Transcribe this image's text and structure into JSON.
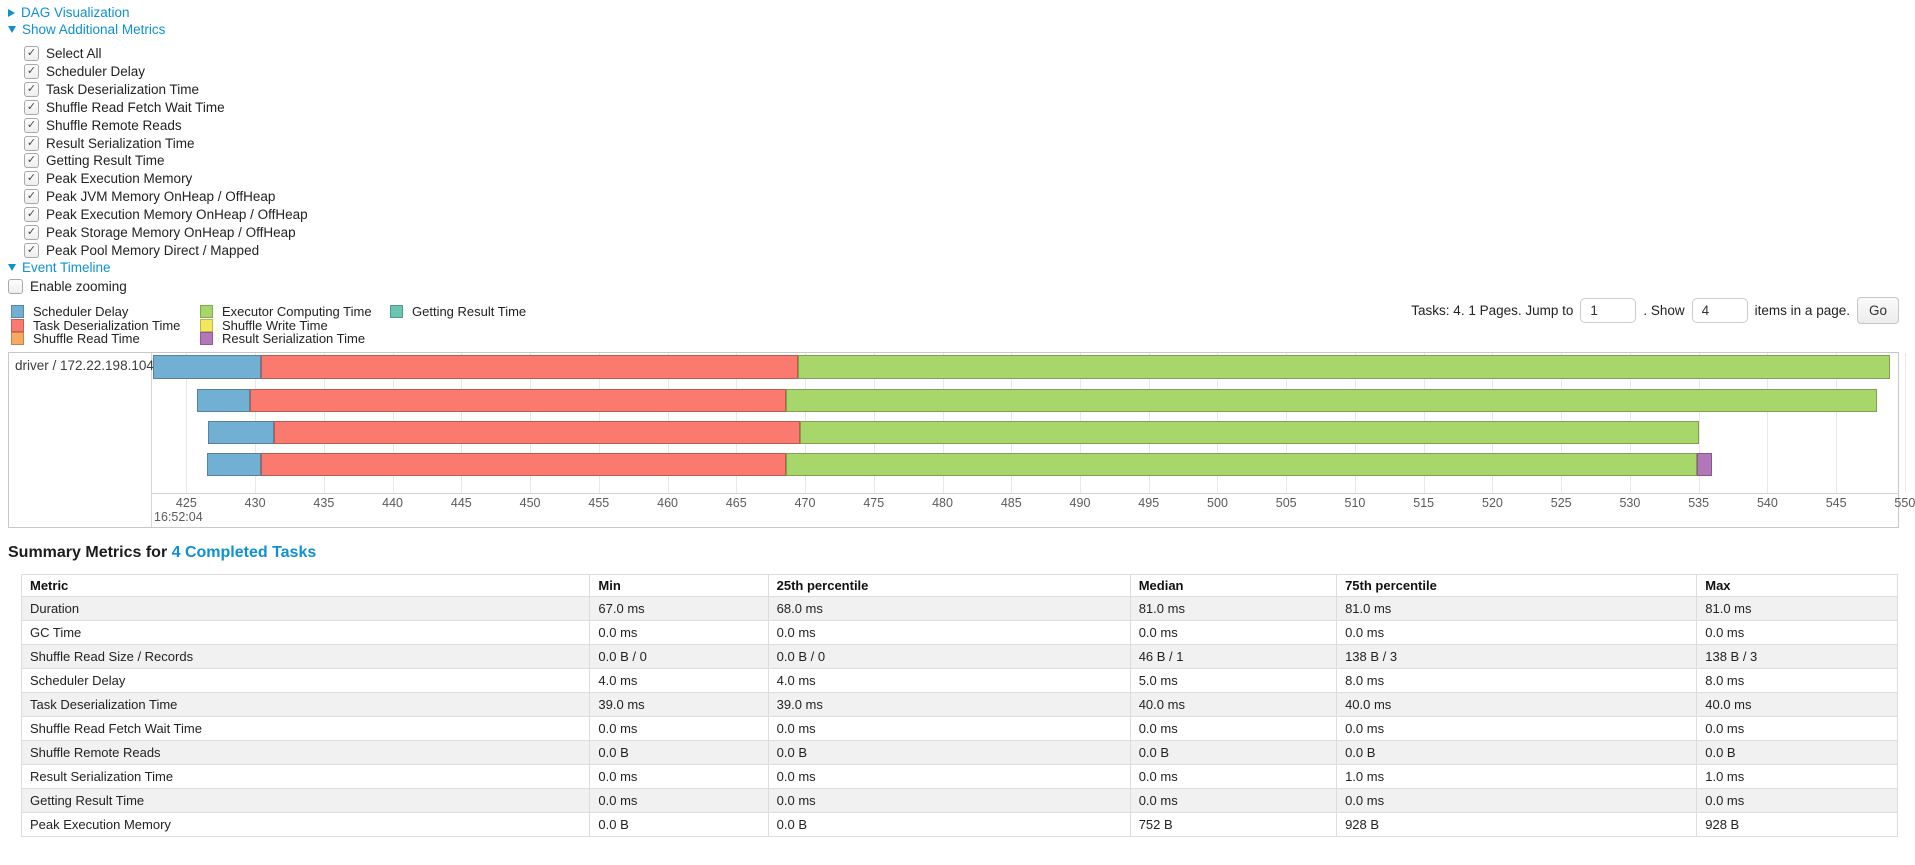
{
  "colors": {
    "scheduler_delay": "#71AFD3",
    "task_deserialization": "#FB7A6F",
    "shuffle_read": "#F9A85F",
    "executor_computing": "#A9D66A",
    "shuffle_write": "#F3E75F",
    "result_serialization": "#B476BB",
    "getting_result": "#6CC5B3",
    "link": "#0E90D2"
  },
  "links": {
    "dag": "DAG Visualization",
    "additional_metrics": "Show Additional Metrics",
    "event_timeline": "Event Timeline"
  },
  "metrics_panel": {
    "items": [
      {
        "label": "Select All",
        "checked": true
      },
      {
        "label": "Scheduler Delay",
        "checked": true
      },
      {
        "label": "Task Deserialization Time",
        "checked": true
      },
      {
        "label": "Shuffle Read Fetch Wait Time",
        "checked": true
      },
      {
        "label": "Shuffle Remote Reads",
        "checked": true
      },
      {
        "label": "Result Serialization Time",
        "checked": true
      },
      {
        "label": "Getting Result Time",
        "checked": true
      },
      {
        "label": "Peak Execution Memory",
        "checked": true
      },
      {
        "label": "Peak JVM Memory OnHeap / OffHeap",
        "checked": true
      },
      {
        "label": "Peak Execution Memory OnHeap / OffHeap",
        "checked": true
      },
      {
        "label": "Peak Storage Memory OnHeap / OffHeap",
        "checked": true
      },
      {
        "label": "Peak Pool Memory Direct / Mapped",
        "checked": true
      }
    ]
  },
  "enable_zooming": {
    "label": "Enable zooming",
    "checked": false
  },
  "legend": {
    "columns": [
      [
        {
          "label": "Scheduler Delay",
          "kind": "scheduler_delay"
        },
        {
          "label": "Task Deserialization Time",
          "kind": "task_deserialization"
        },
        {
          "label": "Shuffle Read Time",
          "kind": "shuffle_read"
        }
      ],
      [
        {
          "label": "Executor Computing Time",
          "kind": "executor_computing"
        },
        {
          "label": "Shuffle Write Time",
          "kind": "shuffle_write"
        },
        {
          "label": "Result Serialization Time",
          "kind": "result_serialization"
        }
      ],
      [
        {
          "label": "Getting Result Time",
          "kind": "getting_result"
        }
      ]
    ]
  },
  "pagination": {
    "prefix": "Tasks: 4. 1 Pages. Jump to",
    "jump_value": "1",
    "mid": ". Show",
    "show_value": "4",
    "suffix": "items in a page.",
    "go_label": "Go"
  },
  "chart_data": {
    "type": "timeline",
    "group_label": "driver / 172.22.198.104",
    "x_axis": {
      "t_min": 422.5,
      "t_max": 549.5,
      "tick_start": 425,
      "tick_end": 550,
      "tick_step": 5,
      "unit": "ms",
      "second_label": "16:52:04"
    },
    "tasks": [
      {
        "segments": [
          {
            "kind": "scheduler_delay",
            "start": 422.6,
            "end": 430.4
          },
          {
            "kind": "task_deserialization",
            "start": 430.4,
            "end": 469.5
          },
          {
            "kind": "executor_computing",
            "start": 469.5,
            "end": 548.9
          }
        ]
      },
      {
        "segments": [
          {
            "kind": "scheduler_delay",
            "start": 425.8,
            "end": 429.6
          },
          {
            "kind": "task_deserialization",
            "start": 429.6,
            "end": 468.6
          },
          {
            "kind": "executor_computing",
            "start": 468.6,
            "end": 548.0
          }
        ]
      },
      {
        "segments": [
          {
            "kind": "scheduler_delay",
            "start": 426.6,
            "end": 431.4
          },
          {
            "kind": "task_deserialization",
            "start": 431.4,
            "end": 469.6
          },
          {
            "kind": "executor_computing",
            "start": 469.6,
            "end": 535.0
          }
        ]
      },
      {
        "segments": [
          {
            "kind": "scheduler_delay",
            "start": 426.5,
            "end": 430.4
          },
          {
            "kind": "task_deserialization",
            "start": 430.4,
            "end": 468.6
          },
          {
            "kind": "executor_computing",
            "start": 468.6,
            "end": 534.9
          },
          {
            "kind": "result_serialization",
            "start": 534.9,
            "end": 536.0
          }
        ]
      }
    ]
  },
  "summary": {
    "title_prefix": "Summary Metrics for ",
    "title_link": "4 Completed Tasks",
    "columns": [
      "Metric",
      "Min",
      "25th percentile",
      "Median",
      "75th percentile",
      "Max"
    ],
    "col_widths_pct": [
      30.3,
      9.5,
      19.3,
      11.0,
      19.2,
      10.7
    ],
    "rows": [
      {
        "metric": "Duration",
        "values": [
          "67.0 ms",
          "68.0 ms",
          "81.0 ms",
          "81.0 ms",
          "81.0 ms"
        ]
      },
      {
        "metric": "GC Time",
        "values": [
          "0.0 ms",
          "0.0 ms",
          "0.0 ms",
          "0.0 ms",
          "0.0 ms"
        ]
      },
      {
        "metric": "Shuffle Read Size / Records",
        "values": [
          "0.0 B / 0",
          "0.0 B / 0",
          "46 B / 1",
          "138 B / 3",
          "138 B / 3"
        ]
      },
      {
        "metric": "Scheduler Delay",
        "values": [
          "4.0 ms",
          "4.0 ms",
          "5.0 ms",
          "8.0 ms",
          "8.0 ms"
        ]
      },
      {
        "metric": "Task Deserialization Time",
        "values": [
          "39.0 ms",
          "39.0 ms",
          "40.0 ms",
          "40.0 ms",
          "40.0 ms"
        ]
      },
      {
        "metric": "Shuffle Read Fetch Wait Time",
        "values": [
          "0.0 ms",
          "0.0 ms",
          "0.0 ms",
          "0.0 ms",
          "0.0 ms"
        ]
      },
      {
        "metric": "Shuffle Remote Reads",
        "values": [
          "0.0 B",
          "0.0 B",
          "0.0 B",
          "0.0 B",
          "0.0 B"
        ]
      },
      {
        "metric": "Result Serialization Time",
        "values": [
          "0.0 ms",
          "0.0 ms",
          "0.0 ms",
          "1.0 ms",
          "1.0 ms"
        ]
      },
      {
        "metric": "Getting Result Time",
        "values": [
          "0.0 ms",
          "0.0 ms",
          "0.0 ms",
          "0.0 ms",
          "0.0 ms"
        ]
      },
      {
        "metric": "Peak Execution Memory",
        "values": [
          "0.0 B",
          "0.0 B",
          "752 B",
          "928 B",
          "928 B"
        ]
      }
    ]
  }
}
